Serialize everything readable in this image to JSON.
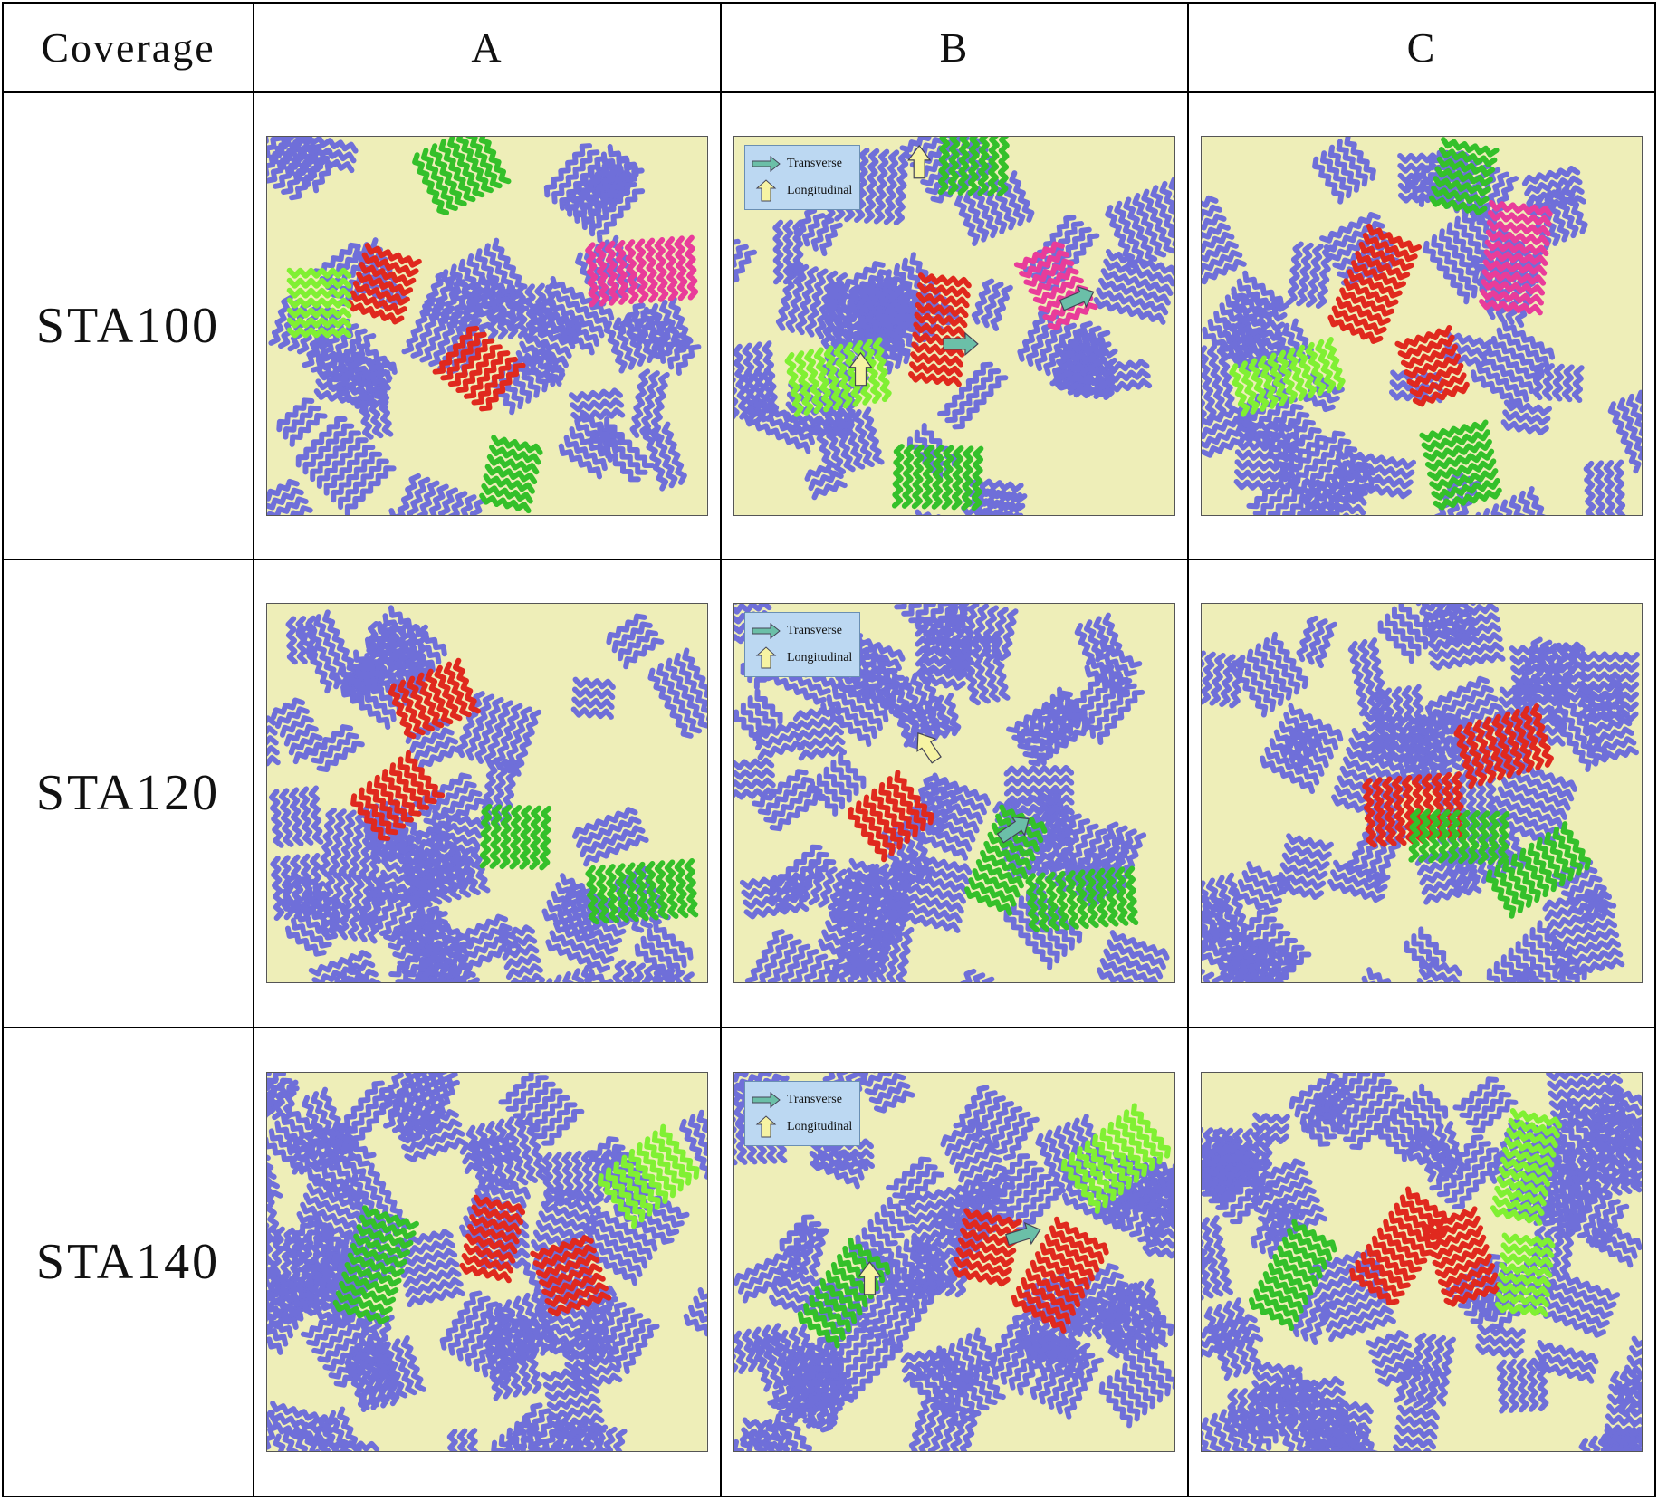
{
  "table": {
    "header": {
      "corner": "Coverage",
      "columns": [
        "A",
        "B",
        "C"
      ]
    },
    "rows": [
      {
        "label": "STA100"
      },
      {
        "label": "STA120"
      },
      {
        "label": "STA140"
      }
    ]
  },
  "legend": {
    "transverse": "Transverse",
    "longitudinal": "Longitudinal"
  },
  "colors": {
    "background": "#eeeeb8",
    "chain": "#6f6fd9",
    "domain_red": "#e0291e",
    "domain_green": "#34c02a",
    "domain_lime": "#80f033",
    "domain_pink": "#e93c9a",
    "arrow_transverse": "#6bbfa8",
    "arrow_longitudinal": "#f6f3a3"
  }
}
